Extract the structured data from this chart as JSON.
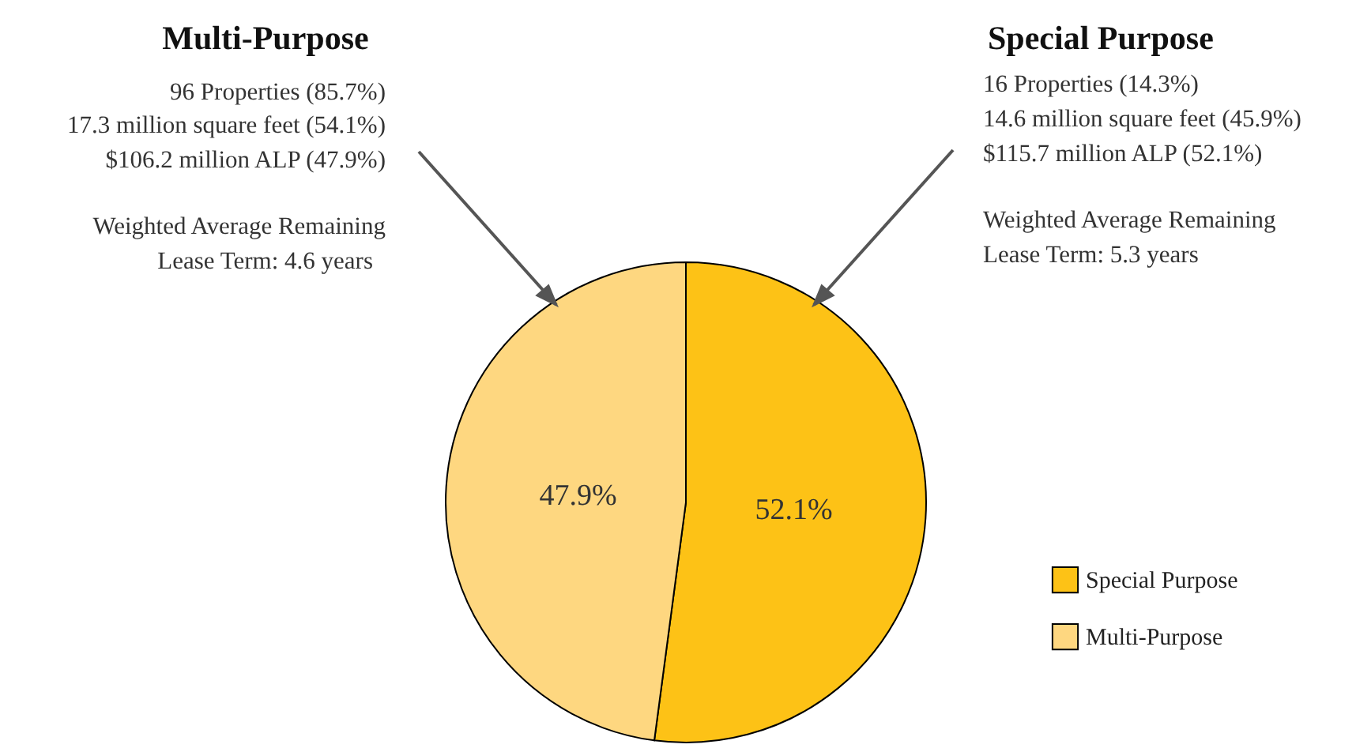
{
  "chart_data": {
    "type": "pie",
    "categories": [
      "Special Purpose",
      "Multi-Purpose"
    ],
    "values": [
      52.1,
      47.9
    ],
    "colors": [
      "#fdc216",
      "#fed780"
    ],
    "value_labels": [
      "52.1%",
      "47.9%"
    ],
    "legend": "bottom right",
    "annotations": [
      "Multi-Purpose",
      "96 Properties (85.7%)",
      "17.3 million square feet (54.1%)",
      "$106.2 million ALP (47.9%)",
      "Weighted Average Remaining",
      "Lease Term: 4.6 years",
      "Special Purpose",
      "16 Properties (14.3%)",
      "14.6 million square feet (45.9%)",
      "$115.7 million ALP (52.1%)",
      "Weighted Average Remaining",
      "Lease Term: 5.3 years"
    ]
  }
}
